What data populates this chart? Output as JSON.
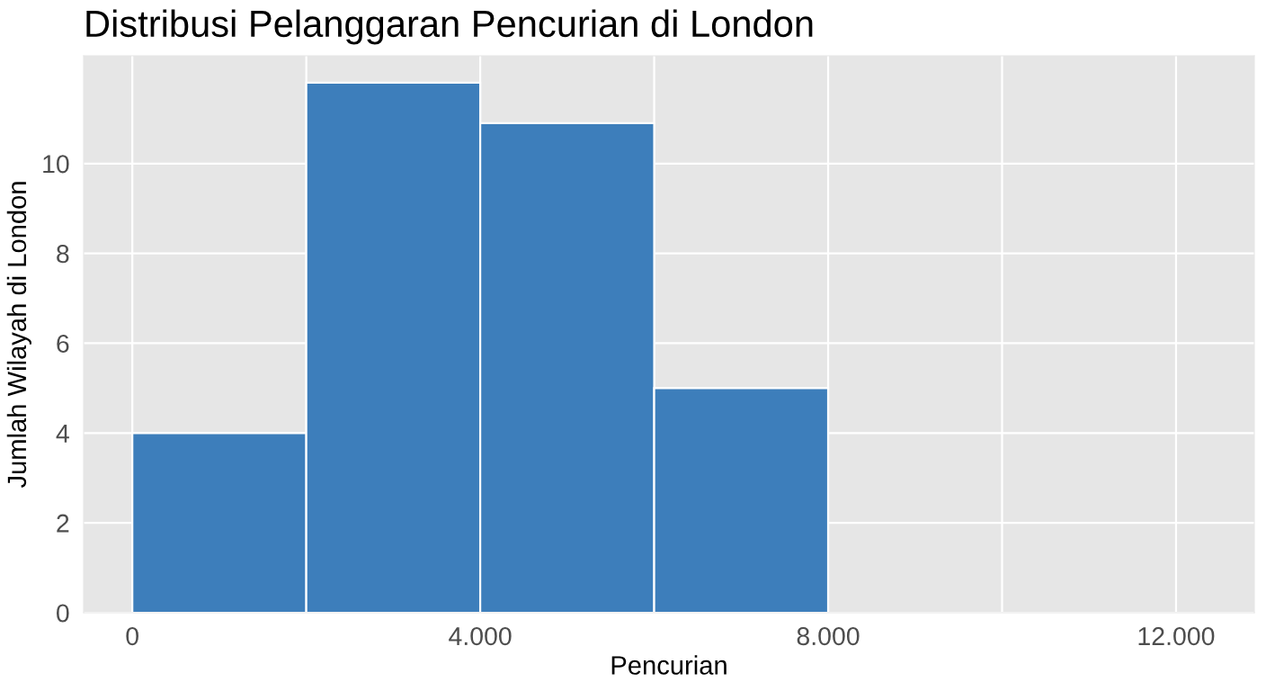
{
  "chart_data": {
    "type": "histogram",
    "title": "Distribusi Pelanggaran Pencurian di London",
    "xlabel": "Pencurian",
    "ylabel": "Jumlah Wilayah di London",
    "bins": [
      0,
      2000,
      4000,
      6000,
      8000
    ],
    "values": [
      4,
      11.8,
      10.9,
      5
    ],
    "color": "#3d7ebb",
    "xlim": [
      -560,
      12900
    ],
    "ylim": [
      0,
      12.4
    ],
    "xticks": [
      0,
      {
        "value": 2000,
        "label": null
      },
      {
        "value": 4000,
        "label": "4.000"
      },
      {
        "value": 6000,
        "label": null
      },
      {
        "value": 8000,
        "label": "8.000"
      },
      {
        "value": 10000,
        "label": null
      },
      {
        "value": 12000,
        "label": "12.000"
      }
    ],
    "yticks": [
      0,
      2,
      4,
      6,
      8,
      10
    ],
    "grid": true
  }
}
